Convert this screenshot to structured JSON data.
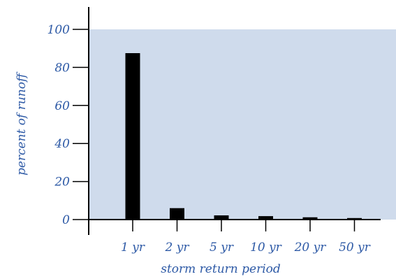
{
  "chart_data": {
    "type": "bar",
    "categories": [
      "1 yr",
      "2 yr",
      "5 yr",
      "10 yr",
      "20 yr",
      "50 yr"
    ],
    "values": [
      87.5,
      6,
      2.2,
      1.8,
      1.2,
      0.8
    ],
    "xlabel": "storm return period",
    "ylabel": "percent of runoff",
    "ylim": [
      0,
      100
    ],
    "yticks": [
      0,
      20,
      40,
      60,
      80,
      100
    ],
    "grid": false,
    "colors": {
      "plot_background": "#cfdbec",
      "bars": "#000000",
      "text": "#2e5aa6",
      "axes": "#000000"
    }
  }
}
